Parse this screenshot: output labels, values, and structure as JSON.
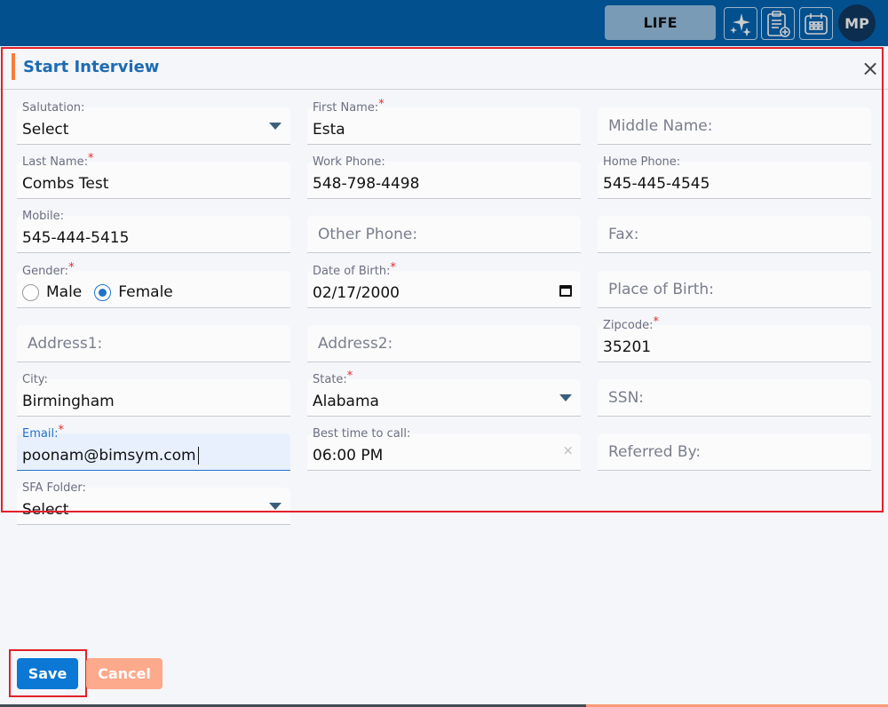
{
  "topbar": {
    "product": "LIFE",
    "avatar": "MP",
    "icons": [
      "sparkle-icon",
      "clipboard-add-icon",
      "calendar-icon"
    ]
  },
  "modal": {
    "title": "Start Interview",
    "close": "×"
  },
  "fields": [
    {
      "name": "salutation",
      "label": "Salutation:",
      "value": "Select",
      "type": "select",
      "col": 0,
      "row": 0
    },
    {
      "name": "first-name",
      "label": "First Name:",
      "value": "Esta",
      "required": true,
      "col": 1,
      "row": 0
    },
    {
      "name": "middle-name",
      "placeholder": "Middle Name:",
      "col": 2,
      "row": 0
    },
    {
      "name": "last-name",
      "label": "Last Name:",
      "value": "Combs Test",
      "required": true,
      "col": 0,
      "row": 1
    },
    {
      "name": "work-phone",
      "label": "Work Phone:",
      "value": "548-798-4498",
      "col": 1,
      "row": 1
    },
    {
      "name": "home-phone",
      "label": "Home Phone:",
      "value": "545-445-4545",
      "col": 2,
      "row": 1
    },
    {
      "name": "mobile",
      "label": "Mobile:",
      "value": "545-444-5415",
      "col": 0,
      "row": 2
    },
    {
      "name": "other-phone",
      "placeholder": "Other Phone:",
      "col": 1,
      "row": 2
    },
    {
      "name": "fax",
      "placeholder": "Fax:",
      "col": 2,
      "row": 2
    },
    {
      "name": "gender",
      "label": "Gender:",
      "required": true,
      "type": "radio",
      "options": [
        "Male",
        "Female"
      ],
      "selected": "Female",
      "col": 0,
      "row": 3
    },
    {
      "name": "date-of-birth",
      "label": "Date of Birth:",
      "value": "02/17/2000",
      "required": true,
      "type": "date",
      "col": 1,
      "row": 3
    },
    {
      "name": "place-of-birth",
      "placeholder": "Place of Birth:",
      "col": 2,
      "row": 3
    },
    {
      "name": "address1",
      "placeholder": "Address1:",
      "col": 0,
      "row": 4
    },
    {
      "name": "address2",
      "placeholder": "Address2:",
      "col": 1,
      "row": 4
    },
    {
      "name": "zipcode",
      "label": "Zipcode:",
      "value": "35201",
      "required": true,
      "col": 2,
      "row": 4
    },
    {
      "name": "city",
      "label": "City:",
      "value": "Birmingham",
      "col": 0,
      "row": 5
    },
    {
      "name": "state",
      "label": "State:",
      "value": "Alabama",
      "required": true,
      "type": "select",
      "col": 1,
      "row": 5
    },
    {
      "name": "ssn",
      "placeholder": "SSN:",
      "col": 2,
      "row": 5
    },
    {
      "name": "email",
      "label": "Email:",
      "value": "poonam@bimsym.com",
      "required": true,
      "focused": true,
      "col": 0,
      "row": 6
    },
    {
      "name": "best-time-to-call",
      "label": "Best time to call:",
      "value": "06:00 PM",
      "type": "time",
      "col": 1,
      "row": 6
    },
    {
      "name": "referred-by",
      "placeholder": "Referred By:",
      "col": 2,
      "row": 6
    },
    {
      "name": "sfa-folder",
      "label": "SFA Folder:",
      "value": "Select",
      "type": "select",
      "col": 0,
      "row": 7
    }
  ],
  "actions": {
    "save": "Save",
    "cancel": "Cancel"
  },
  "colors": {
    "topbar": "#03508f",
    "accent": "#1d6bb3",
    "save": "#0a78d4",
    "cancel": "#fda98b",
    "highlight": "#e3202a"
  }
}
